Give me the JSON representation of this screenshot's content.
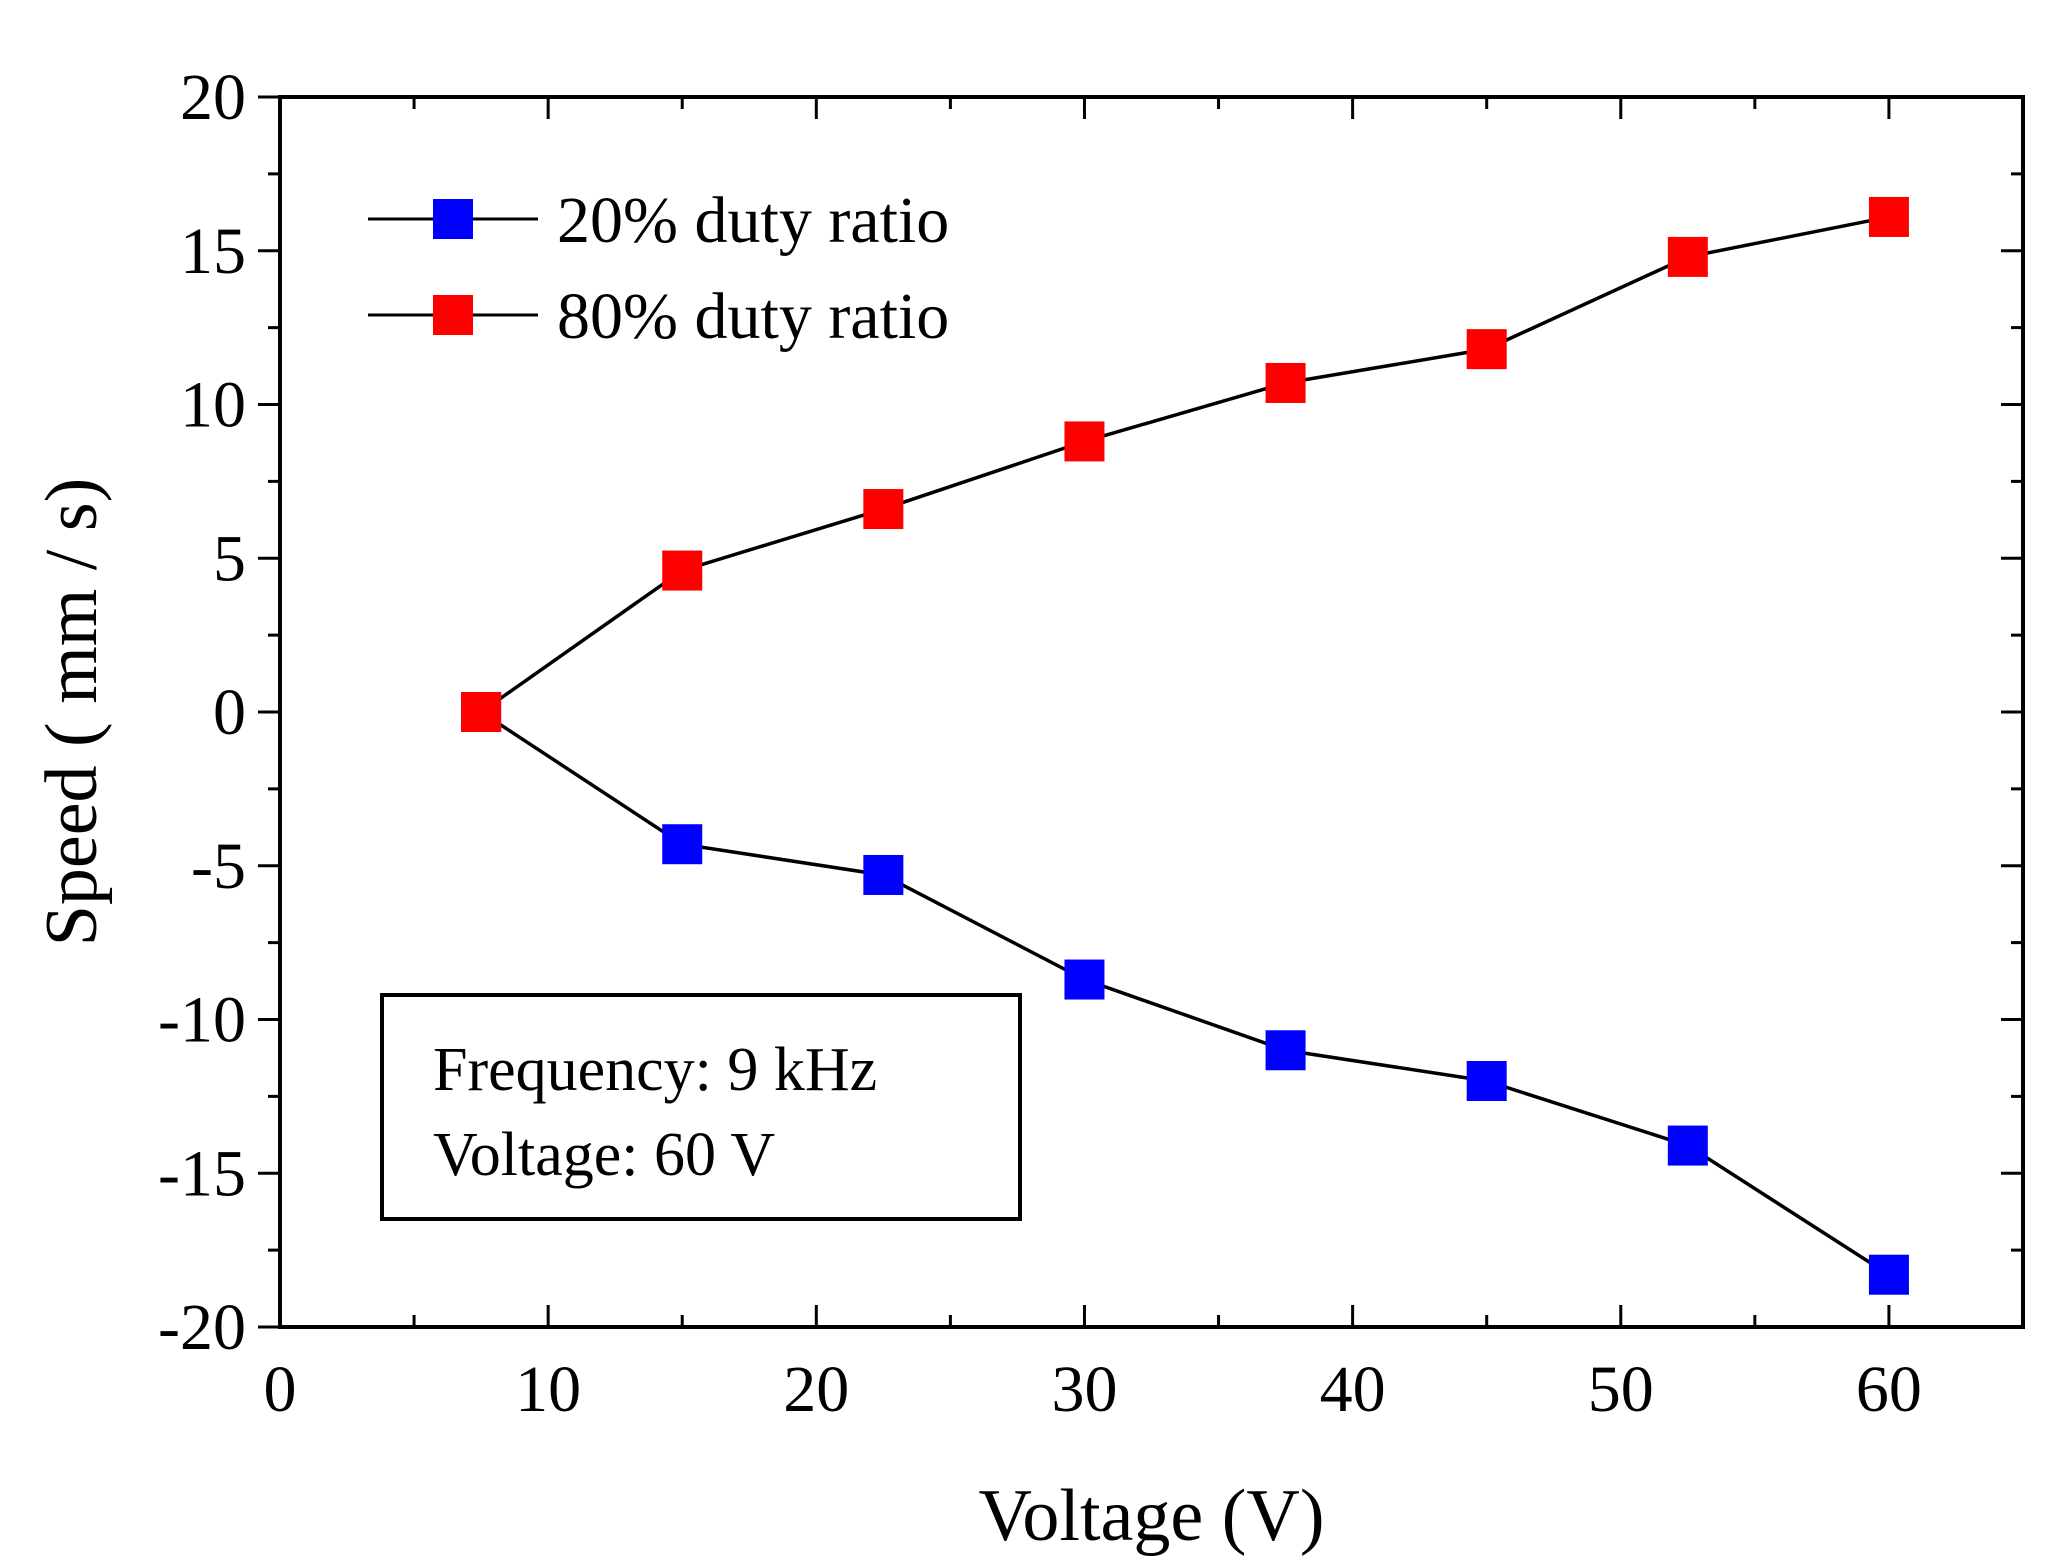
{
  "chart_data": {
    "type": "line",
    "xlabel": "Voltage (V)",
    "ylabel": "Speed ( mm / s)",
    "xlim": [
      0,
      65
    ],
    "ylim": [
      -20,
      20
    ],
    "x_ticks": [
      0,
      10,
      20,
      30,
      40,
      50,
      60
    ],
    "y_ticks": [
      20,
      15,
      10,
      5,
      0,
      -5,
      -10,
      -15,
      -20
    ],
    "x_tick_labels": [
      "0",
      "10",
      "20",
      "30",
      "40",
      "50",
      "60"
    ],
    "y_tick_labels": [
      "20",
      "15",
      "10",
      "5",
      "0",
      "-5",
      "-10",
      "-15",
      "-20"
    ],
    "grid": false,
    "legend_position": "top-left",
    "series": [
      {
        "name": "20% duty ratio",
        "color": "#0000ff",
        "marker": "square",
        "x": [
          7.5,
          15,
          22.5,
          30,
          37.5,
          45,
          52.5,
          60
        ],
        "y": [
          0,
          -4.3,
          -5.3,
          -8.7,
          -11.0,
          -12.0,
          -14.1,
          -18.3
        ]
      },
      {
        "name": "80% duty ratio",
        "color": "#ff0000",
        "marker": "square",
        "x": [
          7.5,
          15,
          22.5,
          30,
          37.5,
          45,
          52.5,
          60
        ],
        "y": [
          0,
          4.6,
          6.6,
          8.8,
          10.7,
          11.8,
          14.8,
          16.1
        ]
      }
    ],
    "annotation": {
      "lines": [
        "Frequency: 9 kHz",
        "Voltage: 60 V"
      ],
      "position": "bottom-left"
    }
  }
}
